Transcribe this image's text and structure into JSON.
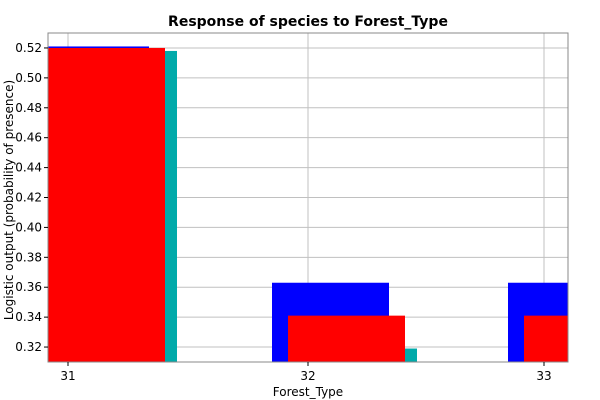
{
  "chart_data": {
    "type": "bar",
    "title": "Response of species to Forest_Type",
    "xlabel": "Forest_Type",
    "ylabel": "Logistic output (probability of presence)",
    "categories": [
      "31",
      "32",
      "33"
    ],
    "ylim": [
      0.31,
      0.53
    ],
    "yticks": [
      "0.32",
      "0.34",
      "0.36",
      "0.38",
      "0.40",
      "0.42",
      "0.44",
      "0.46",
      "0.48",
      "0.50",
      "0.52"
    ],
    "grid": true,
    "series": [
      {
        "color": "#ff0000",
        "values": [
          0.52,
          0.341,
          0.341
        ]
      },
      {
        "color": "#0000ff",
        "values": [
          0.521,
          0.363,
          0.363
        ]
      },
      {
        "color": "#00aaaa",
        "values": [
          0.518,
          0.319,
          null
        ]
      }
    ]
  }
}
